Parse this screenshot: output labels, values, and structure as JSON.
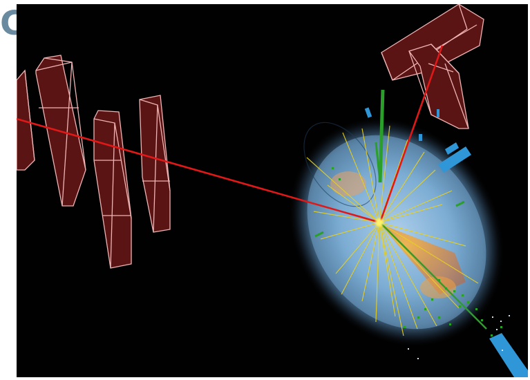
{
  "corner_glyph": "C",
  "scene": {
    "description_free": true,
    "colors": {
      "background": "#020101",
      "muon_chamber_fill": "#5a1414",
      "muon_chamber_edge": "#f0b4b4",
      "muon_track": "#e01818",
      "inner_tracks": "#e8d020",
      "jet_cone": "#f07818",
      "em_deposit": "#2aa02a",
      "calorimeter_glow": "#a8d4f4",
      "endcap_segments": "#2f96d8"
    }
  }
}
